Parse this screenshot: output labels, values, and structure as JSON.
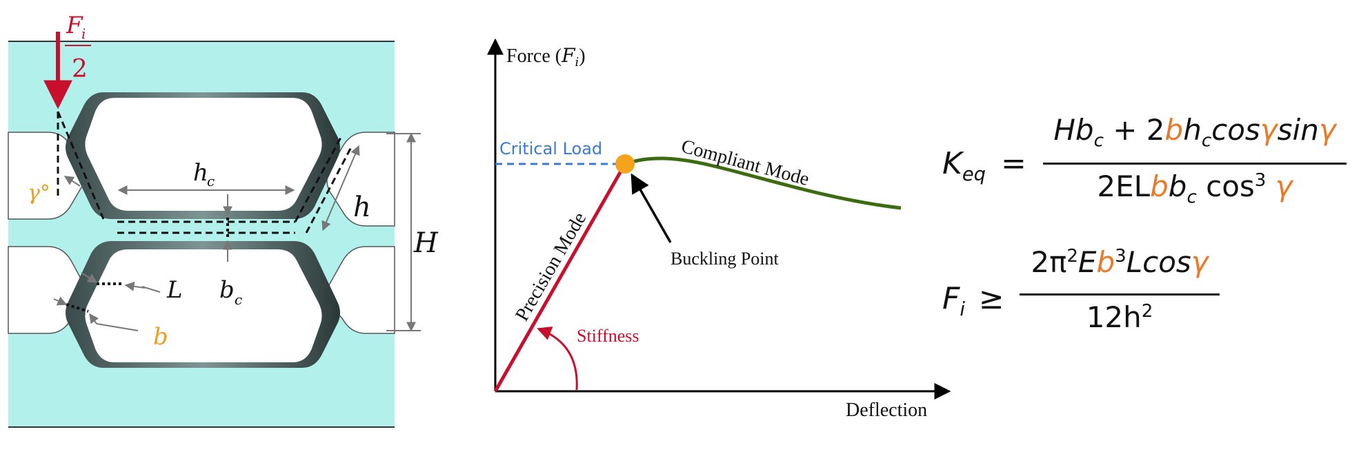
{
  "colors": {
    "accent_red": "#c8102e",
    "orange": "#e87a2a",
    "blue": "#3a7bd5",
    "green": "#3d6b12",
    "cyan": "#b2f0ec",
    "dark": "#1a1a1a"
  },
  "geometry_panel": {
    "force_label": {
      "top": "F",
      "sub": "i",
      "den": "2"
    },
    "labels": {
      "gamma": "γ°",
      "hc": "h",
      "hc_sub": "c",
      "h": "h",
      "H": "H",
      "L": "L",
      "b": "b",
      "bc": "b",
      "bc_sub": "c"
    }
  },
  "chart": {
    "y_axis_label": "Force",
    "y_axis_symbol": "F",
    "y_axis_sub": "i",
    "x_axis_label": "Deflection",
    "critical_load_label": "Critical Load",
    "compliant_mode_label": "Compliant Mode",
    "precision_mode_label": "Precision Mode",
    "buckling_point_label": "Buckling Point",
    "stiffness_label": "Stiffness"
  },
  "equations": {
    "keq": {
      "lhs": "K",
      "lhs_sub": "eq",
      "eq": "=",
      "num": {
        "H": "H",
        "b1": "b",
        "c1": "c",
        "plus": "+ 2",
        "b2": "b",
        "h": "h",
        "c2": "c",
        "cos": "cos",
        "g1": "γ",
        "sin": "sin",
        "g2": "γ"
      },
      "den": {
        "pre": "2EL",
        "b1": "b",
        "b2": "b",
        "c": "c",
        "cos": "cos",
        "pow": "3",
        "g": "γ"
      }
    },
    "fi": {
      "lhs": "F",
      "lhs_sub": "i",
      "geq": "≥",
      "num": {
        "pre": "2π",
        "pow1": "2",
        "E": "E",
        "b": "b",
        "pow2": "3",
        "L": "Lcos",
        "g": "γ"
      },
      "den": {
        "pre": "12h",
        "pow": "2"
      }
    }
  }
}
